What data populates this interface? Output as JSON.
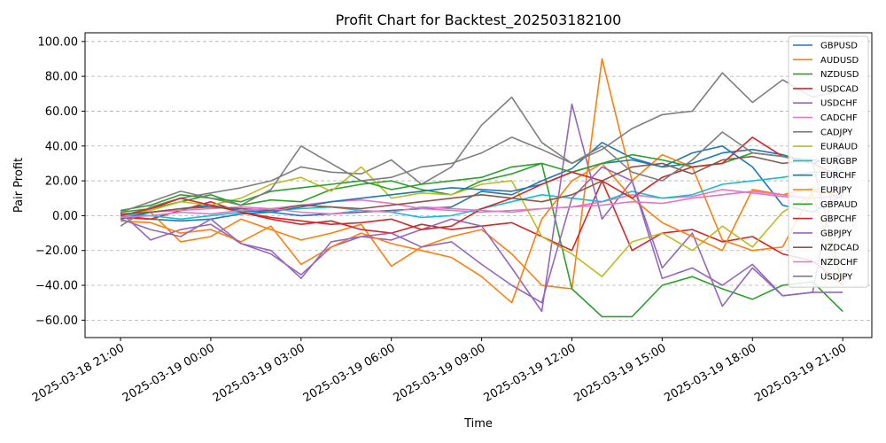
{
  "chart_data": {
    "type": "line",
    "title": "Profit Chart for Backtest_202503182100",
    "xlabel": "Time",
    "ylabel": "Pair Profit",
    "ylim": [
      -70,
      105
    ],
    "grid": true,
    "legend_position": "top-right",
    "x_tick_labels": [
      "2025-03-18 21:00",
      "2025-03-19 00:00",
      "2025-03-19 03:00",
      "2025-03-19 06:00",
      "2025-03-19 09:00",
      "2025-03-19 12:00",
      "2025-03-19 15:00",
      "2025-03-19 18:00",
      "2025-03-19 21:00"
    ],
    "y_ticks": [
      -60,
      -40,
      -20,
      0,
      20,
      40,
      60,
      80,
      100
    ],
    "y_tick_labels": [
      "−60.00",
      "−40.00",
      "−20.00",
      "0.00",
      "20.00",
      "40.00",
      "60.00",
      "80.00",
      "100.00"
    ],
    "x_hours": [
      0,
      1,
      2,
      3,
      4,
      5,
      6,
      7,
      8,
      9,
      10,
      11,
      12,
      13,
      14,
      15,
      16,
      17,
      18,
      19,
      20,
      21,
      22,
      23,
      24
    ],
    "series": [
      {
        "name": "GBPUSD",
        "color": "#1f77b4",
        "values": [
          0,
          -2,
          -3,
          -2,
          1,
          2,
          0,
          1,
          2,
          3,
          4,
          5,
          14,
          12,
          20,
          27,
          42,
          33,
          28,
          36,
          40,
          28,
          6,
          2,
          12
        ]
      },
      {
        "name": "AUDUSD",
        "color": "#ff7f0e",
        "values": [
          -1,
          2,
          -15,
          -12,
          -2,
          -8,
          -14,
          -10,
          -5,
          -29,
          -18,
          -12,
          -8,
          -22,
          -40,
          -42,
          90,
          20,
          35,
          28,
          -14,
          -20,
          -18,
          14,
          13
        ]
      },
      {
        "name": "NZDUSD",
        "color": "#2ca02c",
        "values": [
          2,
          4,
          8,
          12,
          6,
          9,
          8,
          15,
          18,
          20,
          15,
          12,
          20,
          24,
          30,
          -42,
          -58,
          -58,
          -40,
          -35,
          -42,
          -48,
          -40,
          -38,
          -55
        ]
      },
      {
        "name": "USDCAD",
        "color": "#d62728",
        "values": [
          -1,
          -2,
          3,
          8,
          2,
          -2,
          -5,
          -3,
          -8,
          -10,
          -5,
          -8,
          -6,
          -4,
          -12,
          -20,
          20,
          -20,
          -10,
          -8,
          -15,
          -12,
          -22,
          -26,
          -40
        ]
      },
      {
        "name": "USDCHF",
        "color": "#9467bd",
        "values": [
          2,
          -14,
          -8,
          -5,
          -16,
          -22,
          -34,
          -18,
          -12,
          -14,
          -8,
          -2,
          -6,
          -30,
          -55,
          64,
          -2,
          20,
          -30,
          -10,
          -52,
          -30,
          -46,
          -44,
          45
        ]
      },
      {
        "name": "CADCHF",
        "color": "#e377c2",
        "values": [
          0,
          2,
          3,
          4,
          5,
          4,
          6,
          8,
          9,
          7,
          4,
          3,
          2,
          3,
          4,
          5,
          8,
          12,
          10,
          11,
          15,
          13,
          11,
          10,
          12
        ]
      },
      {
        "name": "CADJPY",
        "color": "#7f7f7f",
        "values": [
          -6,
          5,
          10,
          13,
          16,
          20,
          28,
          25,
          24,
          32,
          18,
          28,
          52,
          68,
          42,
          30,
          38,
          50,
          58,
          60,
          82,
          65,
          78,
          68,
          72
        ]
      },
      {
        "name": "EURAUD",
        "color": "#bcbd22",
        "values": [
          0,
          3,
          8,
          6,
          10,
          18,
          22,
          14,
          28,
          10,
          13,
          12,
          18,
          20,
          -12,
          -22,
          -35,
          -15,
          -10,
          -20,
          -6,
          -18,
          2,
          12,
          -40
        ]
      },
      {
        "name": "EURGBP",
        "color": "#17becf",
        "values": [
          1,
          0,
          -2,
          0,
          2,
          3,
          4,
          5,
          3,
          2,
          -1,
          0,
          4,
          8,
          12,
          10,
          8,
          14,
          10,
          12,
          18,
          20,
          22,
          25,
          26
        ]
      },
      {
        "name": "EURCHF",
        "color": "#1f77b4",
        "values": [
          -2,
          2,
          4,
          6,
          3,
          2,
          5,
          8,
          10,
          12,
          14,
          16,
          15,
          14,
          18,
          25,
          30,
          32,
          28,
          30,
          36,
          38,
          35,
          30,
          35
        ]
      },
      {
        "name": "EURJPY",
        "color": "#ff7f0e",
        "values": [
          -3,
          -4,
          -10,
          -8,
          -15,
          -6,
          -28,
          -18,
          -10,
          -16,
          -20,
          -24,
          -35,
          -50,
          -2,
          20,
          30,
          10,
          -4,
          -12,
          -20,
          15,
          12,
          16,
          10
        ]
      },
      {
        "name": "GBPAUD",
        "color": "#2ca02c",
        "values": [
          3,
          6,
          12,
          10,
          8,
          14,
          16,
          18,
          20,
          15,
          18,
          20,
          22,
          28,
          30,
          25,
          30,
          35,
          32,
          28,
          30,
          36,
          34,
          32,
          30
        ]
      },
      {
        "name": "GBPCHF",
        "color": "#d62728",
        "values": [
          0,
          4,
          10,
          6,
          2,
          -1,
          -3,
          -5,
          -4,
          -2,
          -8,
          -6,
          4,
          10,
          18,
          25,
          20,
          10,
          22,
          28,
          30,
          45,
          34,
          30,
          22
        ]
      },
      {
        "name": "GBPJPY",
        "color": "#9467bd",
        "values": [
          -2,
          -8,
          -12,
          -2,
          -16,
          -20,
          -36,
          -15,
          -12,
          -10,
          -18,
          -15,
          -28,
          -40,
          -50,
          10,
          28,
          20,
          -36,
          -30,
          -40,
          -28,
          -46,
          -44,
          -44
        ]
      },
      {
        "name": "NZDCAD",
        "color": "#8c564b",
        "values": [
          1,
          2,
          4,
          5,
          4,
          3,
          6,
          5,
          4,
          6,
          8,
          10,
          12,
          10,
          8,
          12,
          20,
          28,
          30,
          24,
          32,
          34,
          30,
          32,
          30
        ]
      },
      {
        "name": "NZDCHF",
        "color": "#e377c2",
        "values": [
          -1,
          0,
          2,
          1,
          3,
          4,
          2,
          1,
          3,
          2,
          5,
          4,
          3,
          2,
          4,
          5,
          6,
          8,
          7,
          10,
          12,
          14,
          12,
          10,
          11
        ]
      },
      {
        "name": "USDJPY",
        "color": "#7f7f7f",
        "values": [
          2,
          8,
          14,
          10,
          6,
          15,
          40,
          30,
          20,
          22,
          28,
          30,
          36,
          45,
          38,
          30,
          40,
          25,
          20,
          32,
          48,
          36,
          34,
          30,
          -40
        ]
      }
    ]
  }
}
